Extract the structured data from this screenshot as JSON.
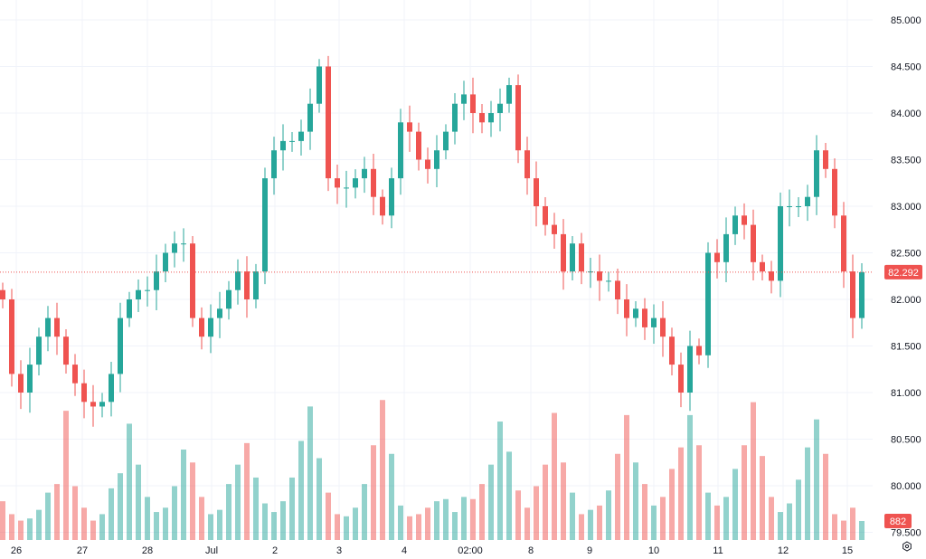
{
  "chart_data": {
    "type": "candlestick",
    "colors": {
      "up": "#26a69a",
      "down": "#ef5350",
      "grid": "#f0f3fa",
      "last_price_line": "#ef5350"
    },
    "grid": true,
    "y_axis": {
      "position": "right",
      "range": [
        79.4,
        85.1
      ],
      "ticks": [
        "85.000",
        "84.500",
        "84.000",
        "83.500",
        "83.000",
        "82.500",
        "82.000",
        "81.500",
        "81.000",
        "80.500",
        "80.000",
        "79.500"
      ],
      "tick_values": [
        85.0,
        84.5,
        84.0,
        83.5,
        83.0,
        82.5,
        82.0,
        81.5,
        81.0,
        80.5,
        80.0,
        79.5
      ]
    },
    "x_axis": {
      "ticks": [
        "26",
        "27",
        "28",
        "Jul",
        "2",
        "3",
        "4",
        "02:00",
        "8",
        "9",
        "10",
        "11",
        "12",
        "15"
      ],
      "tick_candle_index": [
        1.5,
        8.8,
        16,
        23.1,
        30.1,
        37.2,
        44.4,
        51.7,
        58.4,
        64.9,
        72,
        79.1,
        86.3,
        93.4
      ]
    },
    "closes": [
      82.0,
      81.2,
      81.0,
      81.3,
      81.6,
      81.8,
      81.6,
      81.3,
      81.1,
      80.9,
      80.85,
      80.9,
      81.2,
      81.8,
      82.0,
      82.1,
      82.1,
      82.3,
      82.5,
      82.6,
      82.6,
      81.8,
      81.6,
      81.8,
      81.9,
      82.1,
      82.3,
      82.0,
      82.3,
      83.3,
      83.6,
      83.7,
      83.7,
      83.8,
      84.1,
      84.5,
      83.3,
      83.2,
      83.2,
      83.3,
      83.4,
      83.1,
      82.9,
      83.3,
      83.9,
      83.8,
      83.5,
      83.4,
      83.6,
      83.8,
      84.1,
      84.2,
      84.0,
      83.9,
      84.0,
      84.1,
      84.3,
      83.6,
      83.3,
      83.0,
      82.8,
      82.7,
      82.3,
      82.6,
      82.3,
      82.3,
      82.2,
      82.2,
      82.0,
      81.8,
      81.9,
      81.7,
      81.8,
      81.6,
      81.3,
      81.0,
      81.5,
      81.4,
      82.5,
      82.4,
      82.7,
      82.9,
      82.8,
      82.4,
      82.3,
      82.2,
      83.0,
      83.0,
      83.0,
      83.1,
      83.6,
      83.4,
      82.9,
      82.3,
      81.8,
      82.292
    ],
    "volumes": [
      1800,
      1200,
      900,
      1000,
      1400,
      2200,
      2600,
      6000,
      2500,
      1500,
      900,
      1200,
      2400,
      3100,
      5400,
      3500,
      2000,
      1300,
      1500,
      2500,
      4200,
      3600,
      2000,
      1200,
      1400,
      2600,
      3500,
      4500,
      2900,
      1700,
      1300,
      1800,
      2900,
      4600,
      6200,
      3800,
      2200,
      1200,
      1100,
      1500,
      2600,
      4400,
      6500,
      4000,
      1600,
      1100,
      1200,
      1500,
      1800,
      1900,
      1300,
      2000,
      1900,
      2600,
      3500,
      5500,
      4100,
      2300,
      1500,
      2500,
      3500,
      5900,
      3600,
      2200,
      1200,
      1400,
      1600,
      2300,
      4000,
      5800,
      3600,
      2600,
      1600,
      2000,
      3300,
      4300,
      5800,
      4400,
      2200,
      1600,
      2000,
      3300,
      4400,
      6400,
      3900,
      2000,
      1300,
      1700,
      2800,
      4300,
      5600,
      4000,
      1200,
      900,
      1500,
      882
    ],
    "last_price": "82.292",
    "last_volume": "882"
  }
}
